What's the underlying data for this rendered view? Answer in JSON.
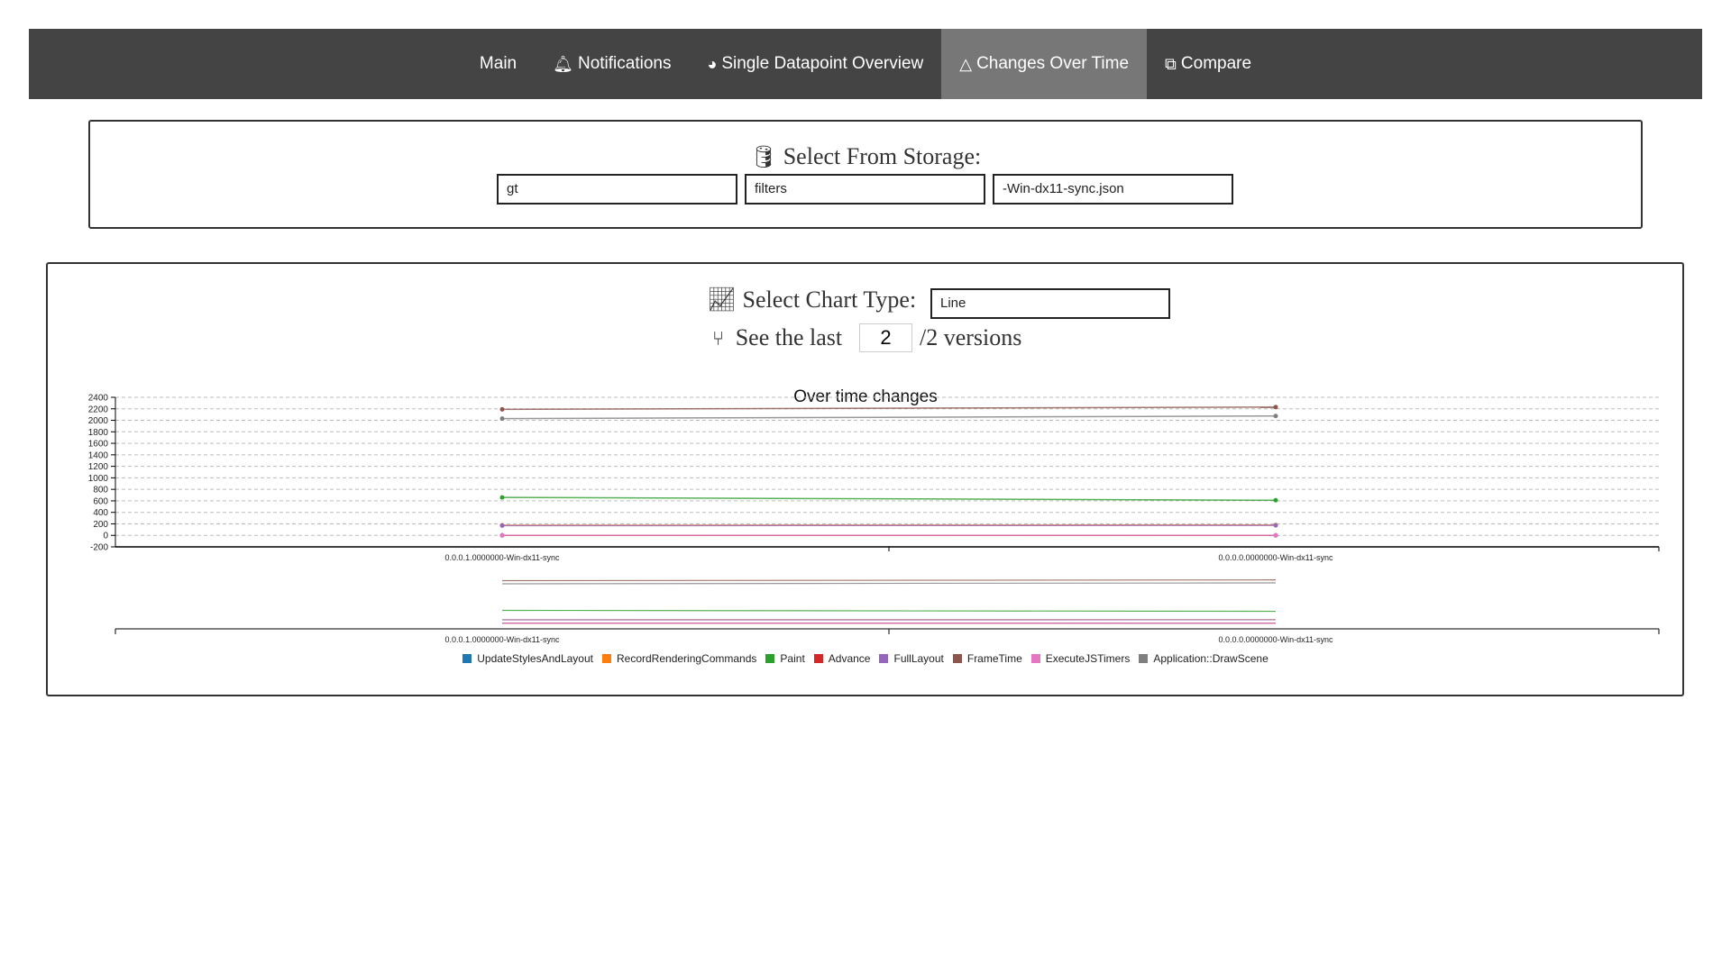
{
  "nav": {
    "items": [
      {
        "label": "Main",
        "icon": ""
      },
      {
        "label": "Notifications",
        "icon": "bell-icon"
      },
      {
        "label": "Single Datapoint Overview",
        "icon": "dashboard-icon"
      },
      {
        "label": "Changes Over Time",
        "icon": "delta-icon",
        "active": true
      },
      {
        "label": "Compare",
        "icon": "copy-icon"
      }
    ]
  },
  "storage": {
    "title": "Select From Storage:",
    "inputs": [
      "gt",
      "filters",
      "-Win-dx11-sync.json"
    ]
  },
  "controls": {
    "chart_type_label": "Select Chart Type:",
    "chart_type_value": "Line",
    "see_last_label": "See the last",
    "versions_value": "2",
    "versions_suffix": "/2 versions"
  },
  "chart_data": {
    "type": "line",
    "title": "Over time changes",
    "categories": [
      "0.0.0.1.0000000-Win-dx11-sync",
      "0.0.0.0.0000000-Win-dx11-sync"
    ],
    "ylim": [
      -200,
      2400
    ],
    "yticks": [
      2400,
      2200,
      2000,
      1800,
      1600,
      1400,
      1200,
      1000,
      800,
      600,
      400,
      200,
      0,
      -200
    ],
    "grid": true,
    "legend": "bottom",
    "series": [
      {
        "name": "UpdateStylesAndLayout",
        "color": "#1f77b4",
        "values": [
          0,
          0
        ]
      },
      {
        "name": "RecordRenderingCommands",
        "color": "#ff7f0e",
        "values": [
          175,
          180
        ]
      },
      {
        "name": "Paint",
        "color": "#2ca02c",
        "values": [
          660,
          610
        ]
      },
      {
        "name": "Advance",
        "color": "#d62728",
        "values": [
          0,
          0
        ]
      },
      {
        "name": "FullLayout",
        "color": "#9467bd",
        "values": [
          170,
          174
        ]
      },
      {
        "name": "FrameTime",
        "color": "#8c564b",
        "values": [
          2190,
          2230
        ]
      },
      {
        "name": "ExecuteJSTimers",
        "color": "#e377c2",
        "values": [
          0,
          0
        ]
      },
      {
        "name": "Application::DrawScene",
        "color": "#7f7f7f",
        "values": [
          2030,
          2075
        ]
      }
    ]
  }
}
